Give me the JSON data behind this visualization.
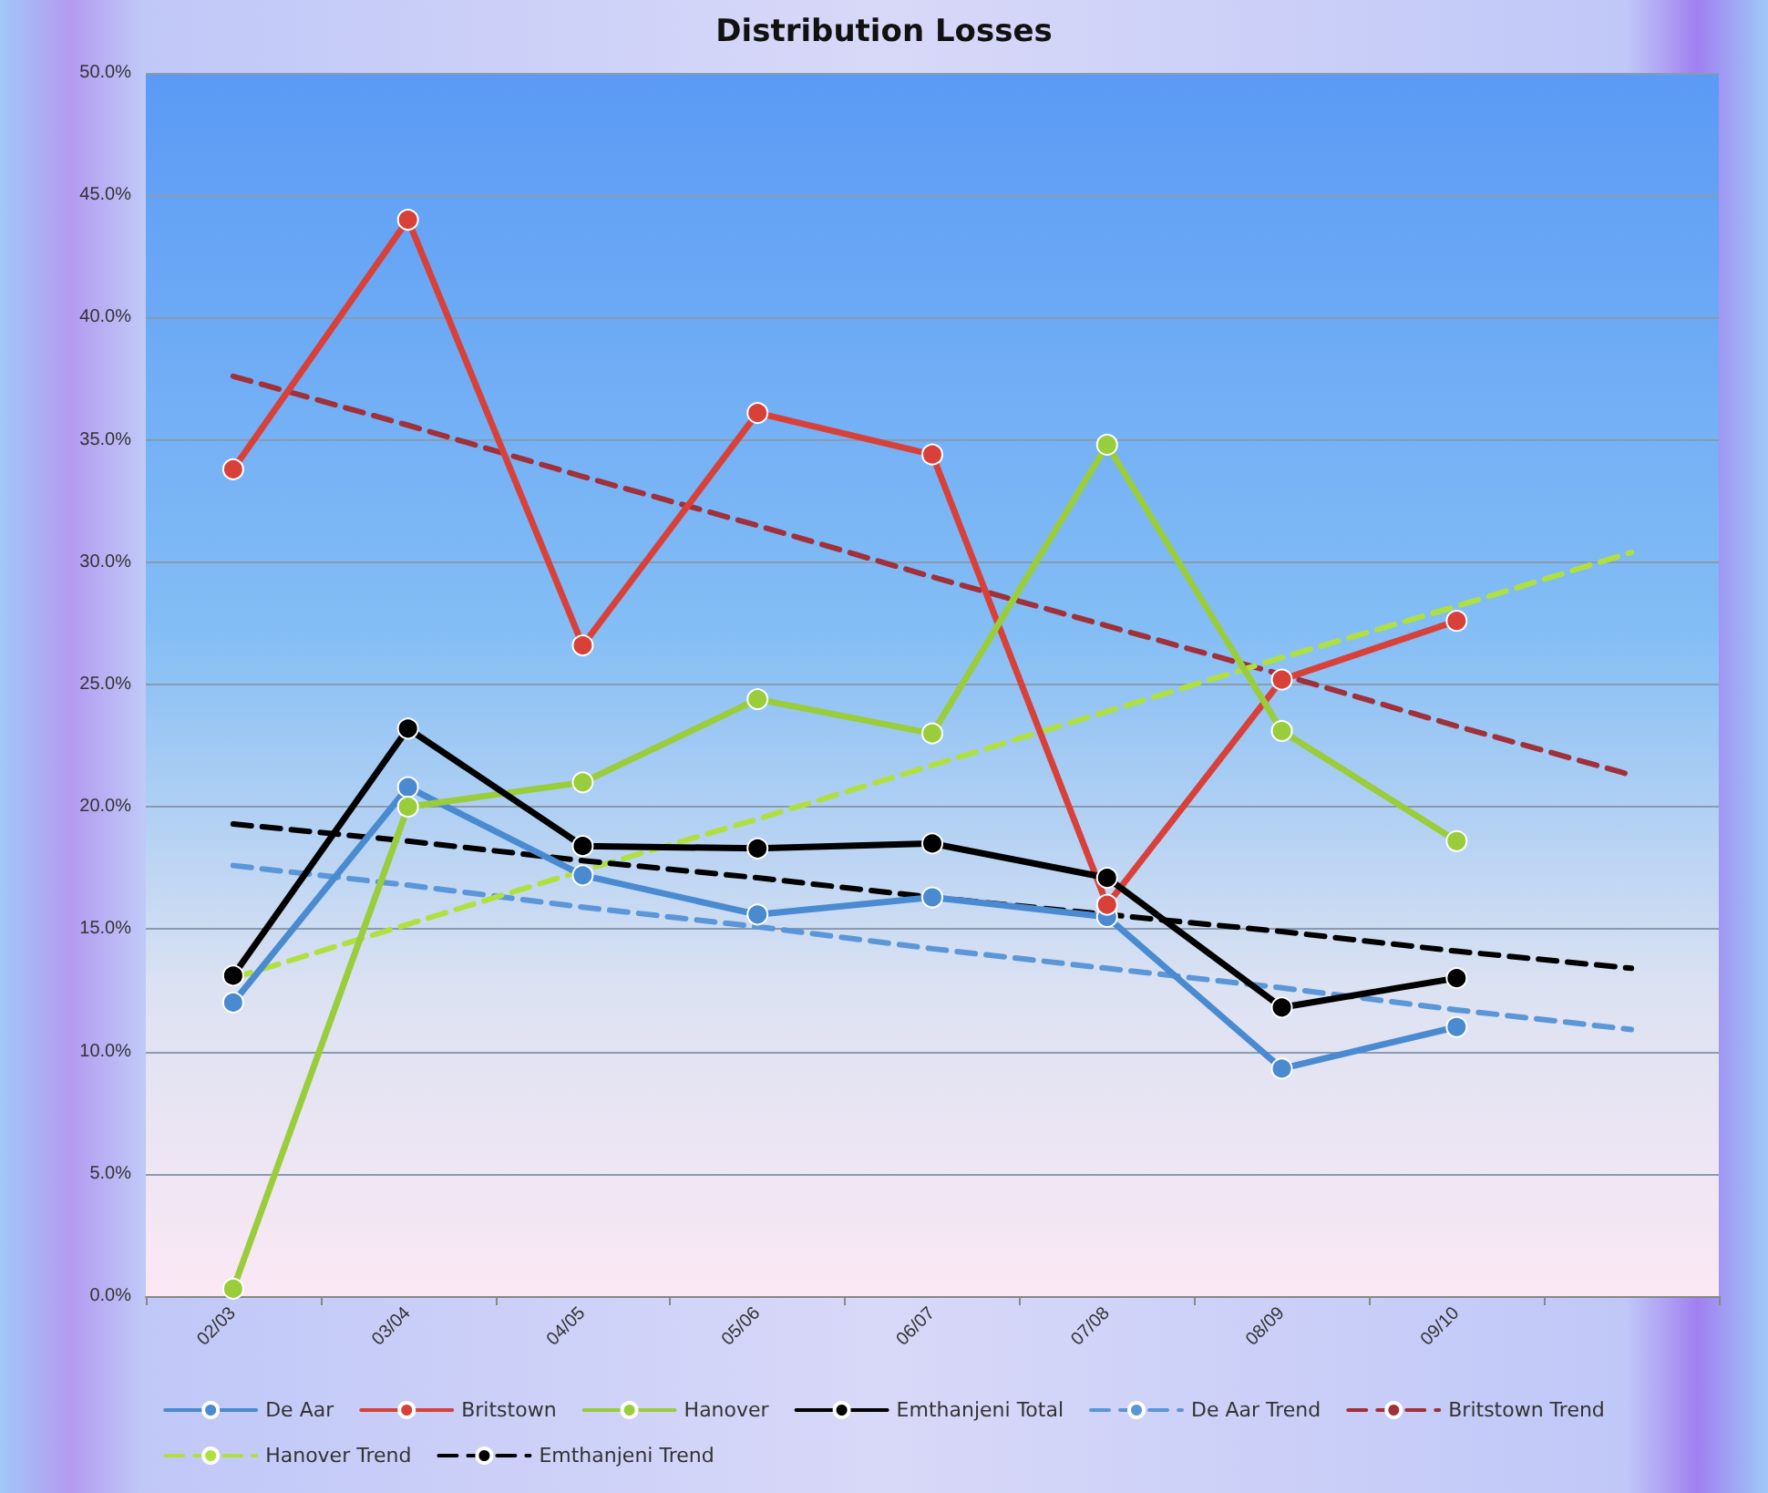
{
  "chart_data": {
    "type": "line",
    "title": "Distribution Losses",
    "categories": [
      "02/03",
      "03/04",
      "04/05",
      "05/06",
      "06/07",
      "07/08",
      "08/09",
      "09/10",
      null
    ],
    "series": [
      {
        "name": "De Aar",
        "color": "#4a8ad0",
        "marker": "circle",
        "line_style": "solid",
        "values": [
          12.0,
          20.8,
          17.2,
          15.6,
          16.3,
          15.5,
          9.3,
          11.0,
          null
        ]
      },
      {
        "name": "Britstown",
        "color": "#d8413a",
        "marker": "circle",
        "line_style": "solid",
        "values": [
          33.8,
          44.0,
          26.6,
          36.1,
          34.4,
          16.0,
          25.2,
          27.6,
          null
        ]
      },
      {
        "name": "Hanover",
        "color": "#9acd3c",
        "marker": "circle",
        "line_style": "solid",
        "values": [
          0.3,
          20.0,
          21.0,
          24.4,
          23.0,
          34.8,
          23.1,
          18.6,
          null
        ]
      },
      {
        "name": "Emthanjeni Total",
        "color": "#000000",
        "marker": "circle",
        "line_style": "solid",
        "values": [
          13.1,
          23.2,
          18.4,
          18.3,
          18.5,
          17.1,
          11.8,
          13.0,
          null
        ]
      },
      {
        "name": "De Aar Trend",
        "color": "#5a96d8",
        "marker": "none",
        "line_style": "dashed",
        "values": [
          17.6,
          16.8,
          15.9,
          15.1,
          14.2,
          13.4,
          12.6,
          11.7,
          10.9
        ]
      },
      {
        "name": "Britstown Trend",
        "color": "#a0303a",
        "marker": "none",
        "line_style": "dashed",
        "values": [
          37.6,
          35.6,
          33.5,
          31.5,
          29.4,
          27.4,
          25.4,
          23.3,
          21.3
        ]
      },
      {
        "name": "Hanover Trend",
        "color": "#b0e040",
        "marker": "none",
        "line_style": "dashed",
        "values": [
          13.0,
          15.2,
          17.4,
          19.5,
          21.7,
          23.9,
          26.1,
          28.2,
          30.4
        ]
      },
      {
        "name": "Emthanjeni Trend",
        "color": "#000000",
        "marker": "none",
        "line_style": "dashed",
        "values": [
          19.3,
          18.6,
          17.8,
          17.1,
          16.3,
          15.6,
          14.9,
          14.1,
          13.4
        ]
      }
    ],
    "ylim": [
      0,
      50
    ],
    "yticks": [
      {
        "value": 0,
        "label": "0.0%"
      },
      {
        "value": 5,
        "label": "5.0%"
      },
      {
        "value": 10,
        "label": "10.0%"
      },
      {
        "value": 15,
        "label": "15.0%"
      },
      {
        "value": 20,
        "label": "20.0%"
      },
      {
        "value": 25,
        "label": "25.0%"
      },
      {
        "value": 30,
        "label": "30.0%"
      },
      {
        "value": 35,
        "label": "35.0%"
      },
      {
        "value": 40,
        "label": "40.0%"
      },
      {
        "value": 45,
        "label": "45.0%"
      },
      {
        "value": 50,
        "label": "50.0%"
      }
    ],
    "grid": "y",
    "legend": "bottom"
  }
}
